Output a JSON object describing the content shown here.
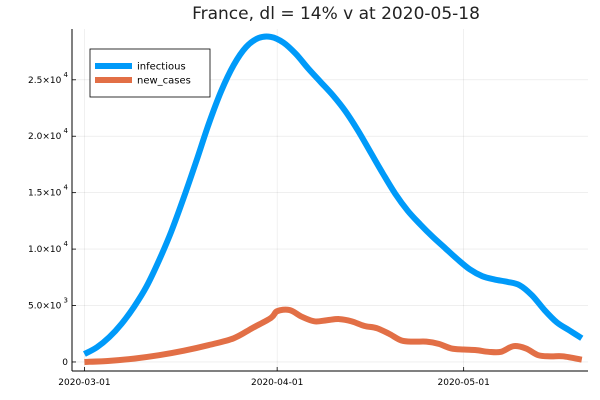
{
  "chart_data": {
    "type": "line",
    "title": "France,  dl = 14% v at 2020-05-18",
    "xlabel": "",
    "ylabel": "",
    "grid": true,
    "legend_position": "top-left",
    "x_start": "2020-03-01",
    "x_end": "2020-05-18",
    "xlim": [
      "2020-02-28",
      "2020-05-21"
    ],
    "ylim": [
      -800,
      29500
    ],
    "x_ticks": [
      {
        "date": "2020-03-01",
        "label": "2020-03-01"
      },
      {
        "date": "2020-04-01",
        "label": "2020-04-01"
      },
      {
        "date": "2020-05-01",
        "label": "2020-05-01"
      }
    ],
    "y_ticks": [
      {
        "value": 0,
        "mantissa": "0",
        "exponent": ""
      },
      {
        "value": 5000,
        "mantissa": "5.0×10",
        "exponent": "3"
      },
      {
        "value": 10000,
        "mantissa": "1.0×10",
        "exponent": "4"
      },
      {
        "value": 15000,
        "mantissa": "1.5×10",
        "exponent": "4"
      },
      {
        "value": 20000,
        "mantissa": "2.0×10",
        "exponent": "4"
      },
      {
        "value": 25000,
        "mantissa": "2.5×10",
        "exponent": "4"
      }
    ],
    "series": [
      {
        "name": "infectious",
        "color": "#009af9",
        "points": [
          [
            "2020-03-01",
            700
          ],
          [
            "2020-03-03",
            1300
          ],
          [
            "2020-03-05",
            2200
          ],
          [
            "2020-03-07",
            3400
          ],
          [
            "2020-03-09",
            4900
          ],
          [
            "2020-03-11",
            6700
          ],
          [
            "2020-03-13",
            9000
          ],
          [
            "2020-03-15",
            11600
          ],
          [
            "2020-03-17",
            14600
          ],
          [
            "2020-03-19",
            17800
          ],
          [
            "2020-03-21",
            21100
          ],
          [
            "2020-03-23",
            24000
          ],
          [
            "2020-03-25",
            26300
          ],
          [
            "2020-03-27",
            27900
          ],
          [
            "2020-03-29",
            28700
          ],
          [
            "2020-03-31",
            28800
          ],
          [
            "2020-04-02",
            28300
          ],
          [
            "2020-04-04",
            27300
          ],
          [
            "2020-04-06",
            26000
          ],
          [
            "2020-04-08",
            24800
          ],
          [
            "2020-04-10",
            23600
          ],
          [
            "2020-04-12",
            22200
          ],
          [
            "2020-04-14",
            20500
          ],
          [
            "2020-04-16",
            18600
          ],
          [
            "2020-04-18",
            16700
          ],
          [
            "2020-04-20",
            14900
          ],
          [
            "2020-04-22",
            13400
          ],
          [
            "2020-04-24",
            12200
          ],
          [
            "2020-04-26",
            11100
          ],
          [
            "2020-04-28",
            10100
          ],
          [
            "2020-04-30",
            9100
          ],
          [
            "2020-05-02",
            8200
          ],
          [
            "2020-05-04",
            7600
          ],
          [
            "2020-05-06",
            7300
          ],
          [
            "2020-05-08",
            7100
          ],
          [
            "2020-05-10",
            6800
          ],
          [
            "2020-05-12",
            5900
          ],
          [
            "2020-05-14",
            4600
          ],
          [
            "2020-05-16",
            3500
          ],
          [
            "2020-05-18",
            2800
          ],
          [
            "2020-05-20",
            2100
          ]
        ]
      },
      {
        "name": "new_cases",
        "color": "#e26f46",
        "points": [
          [
            "2020-03-01",
            0
          ],
          [
            "2020-03-05",
            100
          ],
          [
            "2020-03-09",
            300
          ],
          [
            "2020-03-13",
            600
          ],
          [
            "2020-03-17",
            1000
          ],
          [
            "2020-03-21",
            1500
          ],
          [
            "2020-03-25",
            2100
          ],
          [
            "2020-03-28",
            3000
          ],
          [
            "2020-03-31",
            3900
          ],
          [
            "2020-04-01",
            4500
          ],
          [
            "2020-04-03",
            4600
          ],
          [
            "2020-04-05",
            4000
          ],
          [
            "2020-04-07",
            3600
          ],
          [
            "2020-04-09",
            3700
          ],
          [
            "2020-04-11",
            3800
          ],
          [
            "2020-04-13",
            3600
          ],
          [
            "2020-04-15",
            3200
          ],
          [
            "2020-04-17",
            3000
          ],
          [
            "2020-04-19",
            2500
          ],
          [
            "2020-04-21",
            1900
          ],
          [
            "2020-04-23",
            1800
          ],
          [
            "2020-04-25",
            1800
          ],
          [
            "2020-04-27",
            1600
          ],
          [
            "2020-04-29",
            1200
          ],
          [
            "2020-05-01",
            1100
          ],
          [
            "2020-05-03",
            1050
          ],
          [
            "2020-05-05",
            900
          ],
          [
            "2020-05-07",
            900
          ],
          [
            "2020-05-09",
            1400
          ],
          [
            "2020-05-11",
            1200
          ],
          [
            "2020-05-13",
            600
          ],
          [
            "2020-05-15",
            500
          ],
          [
            "2020-05-17",
            500
          ],
          [
            "2020-05-20",
            200
          ]
        ]
      }
    ]
  }
}
